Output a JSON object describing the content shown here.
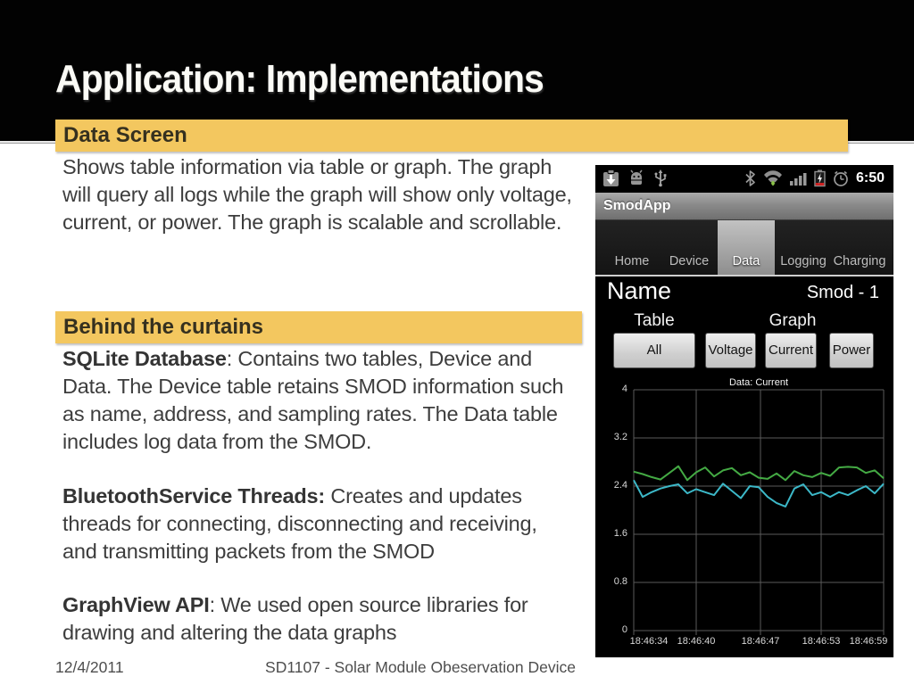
{
  "colors": {
    "accent_yellow": "#f3c75f",
    "header_bg": "#020202",
    "body_text": "#3d3d3d",
    "line_green": "#44aa44",
    "line_cyan": "#3cb8c8"
  },
  "slide": {
    "title": "Application: Implementations",
    "headings": [
      "Data Screen",
      "Behind the curtains"
    ],
    "paragraphs": [
      {
        "lead": "",
        "text": "Shows table information via table or graph.  The graph\nwill query all logs while the graph will show only voltage,\ncurrent, or power.  The graph is scalable and scrollable."
      },
      {
        "lead": "SQLite Database",
        "text": ":  Contains two tables, Device and\nData.  The Device table retains SMOD information such\nas name, address, and sampling rates. The Data table\nincludes log data from the SMOD."
      },
      {
        "lead": "BluetoothService Threads:",
        "text": " Creates and updates\nthreads for connecting, disconnecting and  receiving,\nand transmitting packets from the SMOD"
      },
      {
        "lead": "GraphView API",
        "text": ": We used open source libraries for\ndrawing and altering the data graphs"
      }
    ],
    "footer": {
      "date": "12/4/2011",
      "title": "SD1107 - Solar Module Obeservation Device"
    }
  },
  "phone": {
    "status_bar": {
      "time": "6:50",
      "left_icons": [
        "download-icon",
        "android-debug-icon",
        "usb-icon"
      ],
      "right_icons": [
        "bluetooth-icon",
        "wifi-icon",
        "signal-icon",
        "battery-charging-icon",
        "alarm-clock-icon"
      ]
    },
    "app_title": "SmodApp",
    "tabs": [
      {
        "label": "Home",
        "selected": false
      },
      {
        "label": "Device",
        "selected": false
      },
      {
        "label": "Data",
        "selected": true
      },
      {
        "label": "Logging",
        "selected": false
      },
      {
        "label": "Charging",
        "selected": false
      }
    ],
    "name_label": "Name",
    "device_id": "Smod - 1",
    "view_labels": {
      "table": "Table",
      "graph": "Graph"
    },
    "filter_buttons": [
      "All",
      "Voltage",
      "Current",
      "Power"
    ]
  },
  "chart_data": {
    "type": "line",
    "title": "Data: Current",
    "xlabel": "",
    "ylabel": "",
    "ylim": [
      0,
      4
    ],
    "grid": true,
    "background": "#000000",
    "y_ticks": [
      "4",
      "3.2",
      "2.4",
      "1.6",
      "0.8",
      "0"
    ],
    "x_ticks": [
      "18:46:34",
      "18:46:40",
      "18:46:47",
      "18:46:53",
      "18:46:59"
    ],
    "series": [
      {
        "name": "series-green",
        "color": "#44aa44",
        "values": [
          2.64,
          2.6,
          2.55,
          2.51,
          2.62,
          2.73,
          2.5,
          2.63,
          2.71,
          2.56,
          2.66,
          2.7,
          2.58,
          2.63,
          2.54,
          2.52,
          2.61,
          2.5,
          2.65,
          2.58,
          2.55,
          2.62,
          2.57,
          2.71,
          2.72,
          2.71,
          2.62,
          2.66,
          2.53
        ]
      },
      {
        "name": "series-cyan",
        "color": "#3cb8c8",
        "values": [
          2.5,
          2.22,
          2.3,
          2.36,
          2.4,
          2.43,
          2.28,
          2.35,
          2.3,
          2.25,
          2.44,
          2.32,
          2.2,
          2.4,
          2.38,
          2.22,
          2.12,
          2.06,
          2.36,
          2.43,
          2.25,
          2.3,
          2.22,
          2.3,
          2.25,
          2.33,
          2.4,
          2.28,
          2.44
        ]
      }
    ]
  }
}
